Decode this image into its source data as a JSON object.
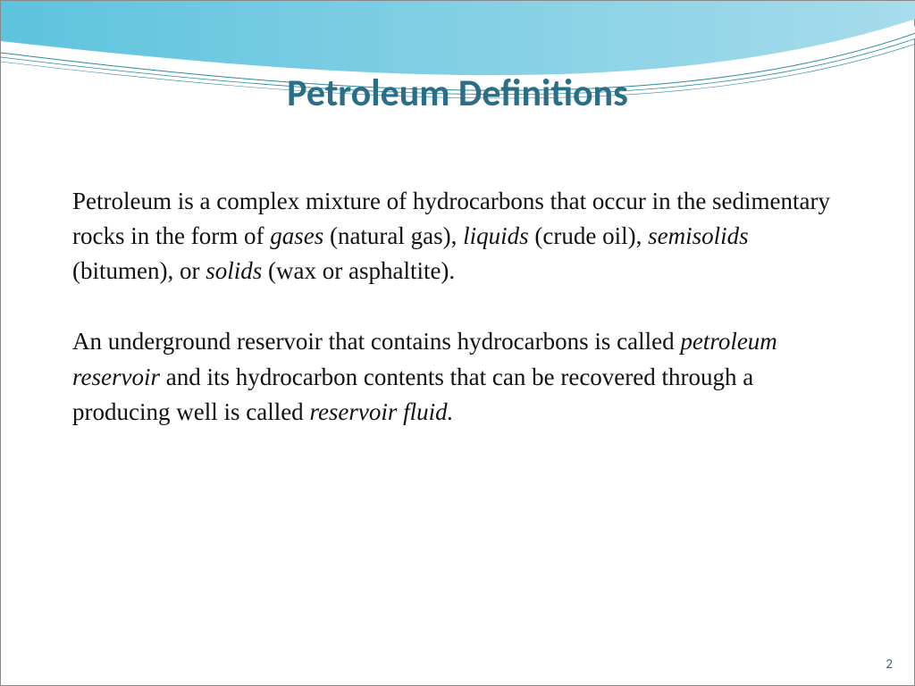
{
  "slide": {
    "title": "Petroleum Definitions",
    "title_color": "#2a6f87",
    "title_fontsize": 42,
    "title_font": "Calibri",
    "paragraphs": [
      {
        "runs": [
          {
            "text": "Petroleum is a complex mixture of hydrocarbons that occur in the sedimentary rocks in the form of ",
            "italic": false
          },
          {
            "text": "gases",
            "italic": true
          },
          {
            "text": " (natural gas), ",
            "italic": false
          },
          {
            "text": "liquids",
            "italic": true
          },
          {
            "text": " (crude oil), ",
            "italic": false
          },
          {
            "text": "semisolids",
            "italic": true
          },
          {
            "text": " (bitumen), or ",
            "italic": false
          },
          {
            "text": "solids",
            "italic": true
          },
          {
            "text": " (wax or asphaltite).",
            "italic": false
          }
        ]
      },
      {
        "runs": [
          {
            "text": "An underground reservoir that contains hydrocarbons is called ",
            "italic": false
          },
          {
            "text": "petroleum reservoir",
            "italic": true
          },
          {
            "text": " and its hydrocarbon contents that can be recovered through a producing well is called ",
            "italic": false
          },
          {
            "text": "reservoir fluid.",
            "italic": true
          }
        ]
      }
    ],
    "body_fontsize": 27,
    "body_color": "#111111",
    "page_number": "2",
    "page_number_color": "#2a6f87",
    "background_color": "#ffffff",
    "wave": {
      "gradient_start": "#5ec3de",
      "gradient_end": "#a7dceb",
      "white": "#ffffff",
      "line_color": "#2a8aa0"
    }
  }
}
